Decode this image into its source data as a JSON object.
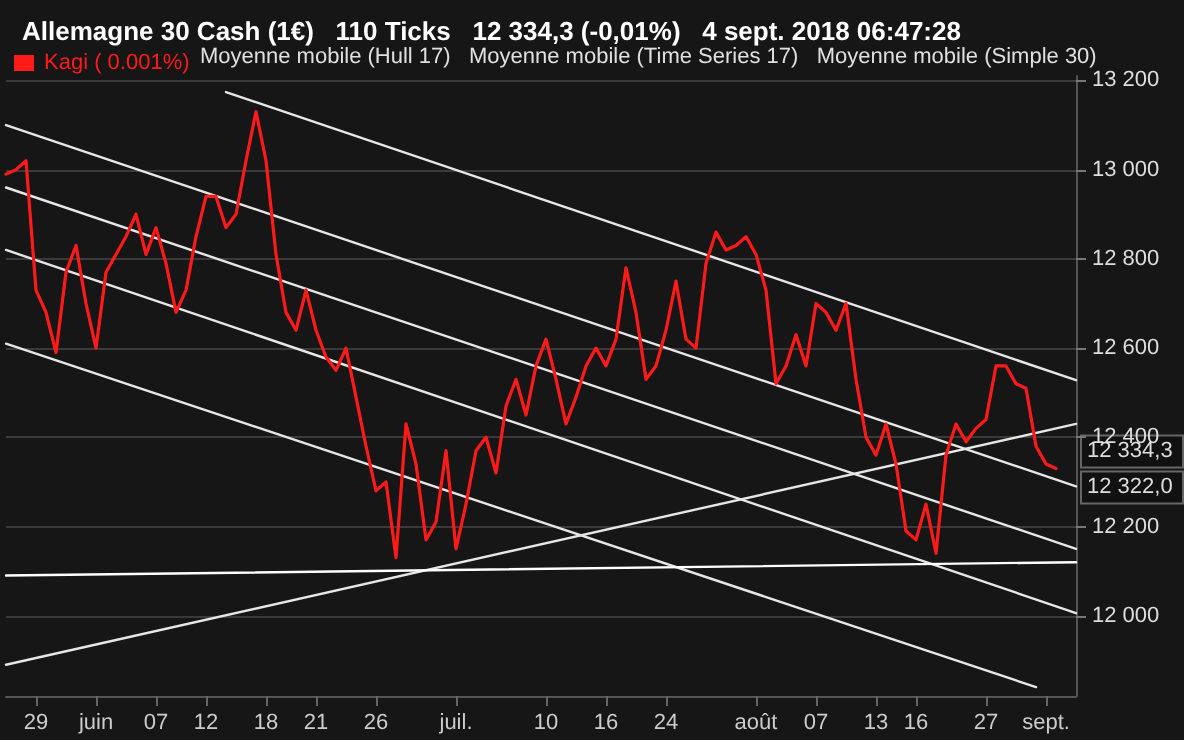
{
  "chart_data": {
    "type": "line",
    "title": "Allemagne 30 Cash (1€)   110 Ticks   12 334,3 (-0,01%)   4 sept. 2018 06:47:28",
    "categories": [
      null,
      null,
      null,
      "29",
      null,
      null,
      null,
      null,
      null,
      "juin",
      null,
      null,
      null,
      null,
      null,
      "07",
      null,
      null,
      null,
      null,
      "12",
      null,
      null,
      null,
      null,
      null,
      "18",
      null,
      null,
      null,
      null,
      "21",
      null,
      null,
      null,
      null,
      null,
      "26",
      null,
      null,
      null,
      null,
      null,
      null,
      null,
      "juil.",
      null,
      null,
      null,
      null,
      null,
      null,
      null,
      null,
      "10",
      null,
      null,
      null,
      null,
      null,
      "16",
      null,
      null,
      null,
      null,
      null,
      "24",
      null,
      null,
      null,
      null,
      null,
      null,
      null,
      null,
      "août",
      null,
      null,
      null,
      null,
      null,
      "07",
      null,
      null,
      null,
      null,
      null,
      "13",
      null,
      null,
      null,
      "16",
      null,
      null,
      null,
      null,
      null,
      null,
      "27",
      null,
      null,
      null,
      null,
      null,
      "sept.",
      null,
      null,
      null
    ],
    "series": [
      {
        "name": "Kagi ( 0.001%)",
        "color": "#ff1a1a",
        "values": [
          12990,
          13000,
          13020,
          12730,
          12680,
          12590,
          12770,
          12830,
          12700,
          12600,
          12770,
          12810,
          12850,
          12900,
          12810,
          12870,
          12790,
          12680,
          12730,
          12850,
          12940,
          12940,
          12870,
          12900,
          13020,
          13130,
          13020,
          12810,
          12680,
          12640,
          12730,
          12640,
          12580,
          12550,
          12600,
          12490,
          12380,
          12280,
          12300,
          12130,
          12430,
          12340,
          12170,
          12210,
          12370,
          12150,
          12250,
          12370,
          12400,
          12320,
          12470,
          12530,
          12450,
          12560,
          12620,
          12530,
          12430,
          12490,
          12560,
          12600,
          12560,
          12620,
          12780,
          12680,
          12530,
          12560,
          12640,
          12750,
          12620,
          12600,
          12790,
          12860,
          12820,
          12830,
          12850,
          12810,
          12730,
          12520,
          12560,
          12630,
          12560,
          12700,
          12680,
          12640,
          12700,
          12530,
          12400,
          12360,
          12430,
          12340,
          12190,
          12170,
          12250,
          12140,
          12360,
          12430,
          12390,
          12420,
          12440,
          12560,
          12560,
          12520,
          12510,
          12380,
          12340,
          12330,
          null,
          null
        ]
      },
      {
        "color": "#e6e6e6",
        "values": [
          null,
          null,
          null,
          null,
          null,
          null,
          null,
          null,
          null,
          null,
          null,
          null,
          null,
          null,
          null,
          null,
          null,
          null,
          null,
          null,
          null,
          null,
          13174,
          null,
          null,
          null,
          null,
          null,
          null,
          null,
          null,
          null,
          null,
          null,
          null,
          null,
          null,
          null,
          null,
          null,
          null,
          null,
          null,
          null,
          null,
          null,
          null,
          null,
          null,
          null,
          null,
          null,
          null,
          null,
          null,
          null,
          null,
          null,
          null,
          null,
          null,
          null,
          null,
          null,
          null,
          null,
          null,
          null,
          null,
          null,
          null,
          null,
          null,
          null,
          null,
          null,
          null,
          null,
          null,
          null,
          null,
          null,
          null,
          null,
          null,
          null,
          null,
          null,
          null,
          null,
          null,
          null,
          null,
          null,
          null,
          null,
          null,
          null,
          null,
          null,
          null,
          null,
          null,
          null,
          null,
          null,
          null,
          12528
        ]
      },
      {
        "color": "#e6e6e6",
        "values": [
          13100,
          null,
          null,
          null,
          null,
          null,
          null,
          null,
          null,
          null,
          null,
          null,
          null,
          null,
          null,
          null,
          null,
          null,
          null,
          null,
          null,
          null,
          null,
          null,
          null,
          null,
          null,
          null,
          null,
          null,
          null,
          null,
          null,
          null,
          null,
          null,
          null,
          null,
          null,
          null,
          null,
          null,
          null,
          null,
          null,
          null,
          null,
          null,
          null,
          null,
          null,
          null,
          null,
          null,
          null,
          null,
          null,
          null,
          null,
          null,
          null,
          null,
          null,
          null,
          null,
          null,
          null,
          null,
          null,
          null,
          null,
          null,
          null,
          null,
          null,
          null,
          null,
          null,
          null,
          null,
          null,
          null,
          null,
          null,
          null,
          null,
          null,
          null,
          null,
          null,
          null,
          null,
          null,
          null,
          null,
          null,
          null,
          null,
          null,
          null,
          null,
          null,
          null,
          null,
          null,
          null,
          null,
          12290
        ]
      },
      {
        "color": "#e6e6e6",
        "values": [
          12960,
          null,
          null,
          null,
          null,
          null,
          null,
          null,
          null,
          null,
          null,
          null,
          null,
          null,
          null,
          null,
          null,
          null,
          null,
          null,
          null,
          null,
          null,
          null,
          null,
          null,
          null,
          null,
          null,
          null,
          null,
          null,
          null,
          null,
          null,
          null,
          null,
          null,
          null,
          null,
          null,
          null,
          null,
          null,
          null,
          null,
          null,
          null,
          null,
          null,
          null,
          null,
          null,
          null,
          null,
          null,
          null,
          null,
          null,
          null,
          null,
          null,
          null,
          null,
          null,
          null,
          null,
          null,
          null,
          null,
          null,
          null,
          null,
          null,
          null,
          null,
          null,
          null,
          null,
          null,
          null,
          null,
          null,
          null,
          null,
          null,
          null,
          null,
          null,
          null,
          null,
          null,
          null,
          null,
          null,
          null,
          null,
          null,
          null,
          null,
          null,
          null,
          null,
          null,
          null,
          null,
          null,
          12150
        ]
      },
      {
        "color": "#e6e6e6",
        "values": [
          12820,
          null,
          null,
          null,
          null,
          null,
          null,
          null,
          null,
          null,
          null,
          null,
          null,
          null,
          null,
          null,
          null,
          null,
          null,
          null,
          null,
          null,
          null,
          null,
          null,
          null,
          null,
          null,
          null,
          null,
          null,
          null,
          null,
          null,
          null,
          null,
          null,
          null,
          null,
          null,
          null,
          null,
          null,
          null,
          null,
          null,
          null,
          null,
          null,
          null,
          null,
          null,
          null,
          null,
          null,
          null,
          null,
          null,
          null,
          null,
          null,
          null,
          null,
          null,
          null,
          null,
          null,
          null,
          null,
          null,
          null,
          null,
          null,
          null,
          null,
          null,
          null,
          null,
          null,
          null,
          null,
          null,
          null,
          null,
          null,
          null,
          null,
          null,
          null,
          null,
          null,
          null,
          null,
          null,
          null,
          null,
          null,
          null,
          null,
          null,
          null,
          null,
          null,
          null,
          null,
          null,
          null,
          12006
        ]
      },
      {
        "color": "#e6e6e6",
        "values": [
          12610,
          null,
          null,
          null,
          null,
          null,
          null,
          null,
          null,
          null,
          null,
          null,
          null,
          null,
          null,
          null,
          null,
          null,
          null,
          null,
          null,
          null,
          null,
          null,
          null,
          null,
          null,
          null,
          null,
          null,
          null,
          null,
          null,
          null,
          null,
          null,
          null,
          null,
          null,
          null,
          null,
          null,
          null,
          null,
          null,
          null,
          null,
          null,
          null,
          null,
          null,
          null,
          null,
          null,
          null,
          null,
          null,
          null,
          null,
          null,
          null,
          null,
          null,
          null,
          null,
          null,
          null,
          null,
          null,
          null,
          null,
          null,
          null,
          null,
          null,
          null,
          null,
          null,
          null,
          null,
          null,
          null,
          null,
          null,
          null,
          null,
          null,
          null,
          null,
          null,
          null,
          null,
          null,
          null,
          null,
          null,
          null,
          null,
          null,
          null,
          null,
          null,
          null,
          11840,
          null,
          null,
          null,
          null
        ]
      },
      {
        "color": "#e6e6e6",
        "values": [
          11890,
          null,
          null,
          null,
          null,
          null,
          null,
          null,
          null,
          null,
          null,
          null,
          null,
          null,
          null,
          null,
          null,
          null,
          null,
          null,
          null,
          null,
          null,
          null,
          null,
          null,
          null,
          null,
          null,
          null,
          null,
          null,
          null,
          null,
          null,
          null,
          null,
          null,
          null,
          null,
          null,
          null,
          null,
          null,
          null,
          null,
          null,
          null,
          null,
          null,
          null,
          null,
          null,
          null,
          null,
          null,
          null,
          null,
          null,
          null,
          null,
          null,
          null,
          null,
          null,
          null,
          null,
          null,
          null,
          null,
          null,
          null,
          null,
          null,
          null,
          null,
          null,
          null,
          null,
          null,
          null,
          null,
          null,
          null,
          null,
          null,
          null,
          null,
          null,
          null,
          null,
          null,
          null,
          null,
          null,
          null,
          null,
          null,
          null,
          null,
          null,
          null,
          null,
          null,
          null,
          null,
          null,
          12430
        ]
      },
      {
        "color": "#ffffff",
        "values": [
          12090,
          null,
          null,
          null,
          null,
          null,
          null,
          null,
          null,
          null,
          null,
          null,
          null,
          null,
          null,
          null,
          null,
          null,
          null,
          null,
          null,
          null,
          null,
          null,
          null,
          null,
          null,
          null,
          null,
          null,
          null,
          null,
          null,
          null,
          null,
          null,
          null,
          null,
          null,
          null,
          null,
          null,
          null,
          null,
          null,
          null,
          null,
          null,
          null,
          null,
          null,
          null,
          null,
          null,
          null,
          null,
          null,
          null,
          null,
          null,
          null,
          null,
          null,
          null,
          null,
          null,
          null,
          null,
          null,
          null,
          null,
          null,
          null,
          null,
          null,
          null,
          null,
          null,
          null,
          null,
          null,
          null,
          null,
          null,
          null,
          null,
          null,
          null,
          null,
          null,
          null,
          null,
          null,
          null,
          null,
          null,
          null,
          null,
          null,
          null,
          null,
          null,
          null,
          null,
          null,
          null,
          null,
          12120
        ]
      }
    ],
    "ylim": [
      11820,
      13210
    ],
    "yticks": [
      {
        "value": 12000,
        "label": "12 000"
      },
      {
        "value": 12200,
        "label": "12 200"
      },
      {
        "value": 12400,
        "label": "12 400"
      },
      {
        "value": 12600,
        "label": "12 600"
      },
      {
        "value": 12800,
        "label": "12 800"
      },
      {
        "value": 13000,
        "label": "13 000"
      },
      {
        "value": 13200,
        "label": "13 200"
      }
    ],
    "grid": "y",
    "legend": "top left",
    "marker": "none",
    "line_style": "solid",
    "subtitle": "Moyenne mobile (Hull 17)   Moyenne mobile (Time Series 17)   Moyenne mobile (Simple 30)",
    "annotations": [
      "12 334,3",
      "12 322,0"
    ]
  }
}
